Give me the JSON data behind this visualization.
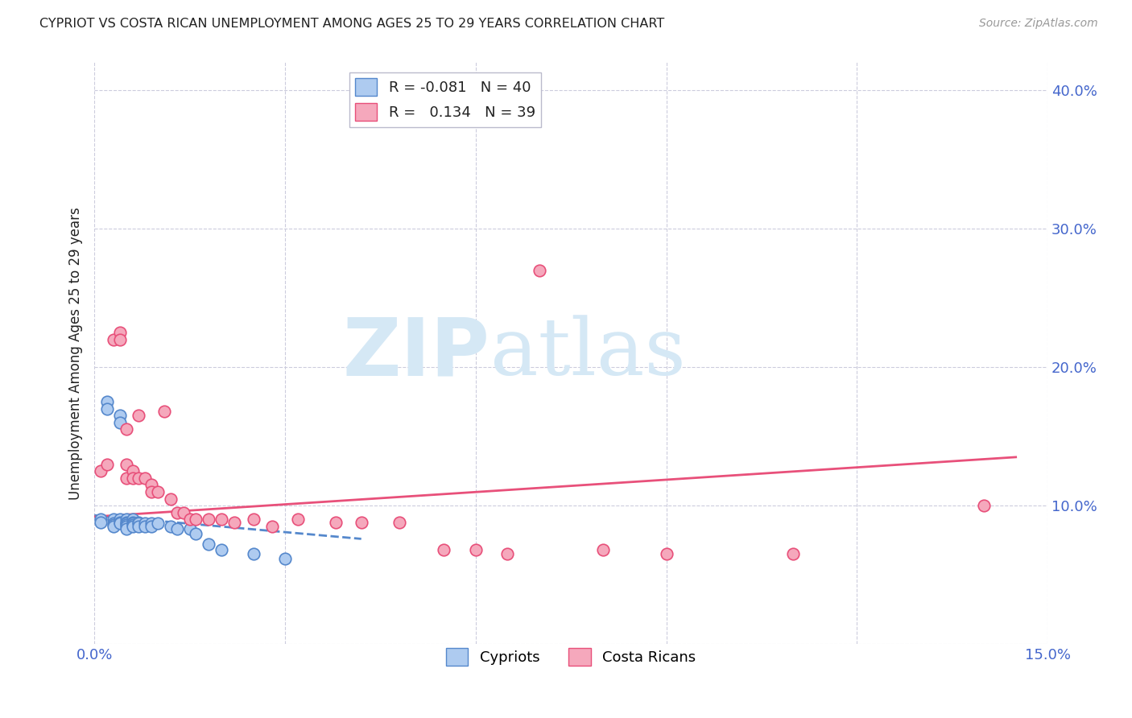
{
  "title": "CYPRIOT VS COSTA RICAN UNEMPLOYMENT AMONG AGES 25 TO 29 YEARS CORRELATION CHART",
  "source": "Source: ZipAtlas.com",
  "ylabel": "Unemployment Among Ages 25 to 29 years",
  "xlim": [
    0.0,
    0.15
  ],
  "ylim": [
    0.0,
    0.42
  ],
  "yticks": [
    0.0,
    0.1,
    0.2,
    0.3,
    0.4
  ],
  "ytick_labels": [
    "",
    "10.0%",
    "20.0%",
    "30.0%",
    "40.0%"
  ],
  "xticks": [
    0.0,
    0.03,
    0.06,
    0.09,
    0.12,
    0.15
  ],
  "xtick_labels": [
    "0.0%",
    "",
    "",
    "",
    "",
    "15.0%"
  ],
  "legend_R_cypriot": "-0.081",
  "legend_N_cypriot": "40",
  "legend_R_costarican": "0.134",
  "legend_N_costarican": "39",
  "cypriot_color": "#aecbf0",
  "costarican_color": "#f5a8bc",
  "trend_cypriot_color": "#5588cc",
  "trend_costarican_color": "#e8507a",
  "axis_color": "#4466cc",
  "grid_color": "#ccccdd",
  "title_color": "#222222",
  "background_color": "#ffffff",
  "watermark_color": "#d5e8f5",
  "cypriot_x": [
    0.001,
    0.001,
    0.002,
    0.002,
    0.003,
    0.003,
    0.003,
    0.003,
    0.004,
    0.004,
    0.004,
    0.004,
    0.004,
    0.005,
    0.005,
    0.005,
    0.005,
    0.005,
    0.005,
    0.006,
    0.006,
    0.006,
    0.006,
    0.006,
    0.007,
    0.007,
    0.007,
    0.008,
    0.008,
    0.009,
    0.009,
    0.01,
    0.012,
    0.013,
    0.015,
    0.016,
    0.018,
    0.02,
    0.025,
    0.03
  ],
  "cypriot_y": [
    0.09,
    0.088,
    0.175,
    0.17,
    0.09,
    0.087,
    0.086,
    0.085,
    0.165,
    0.16,
    0.09,
    0.088,
    0.087,
    0.09,
    0.088,
    0.087,
    0.086,
    0.085,
    0.083,
    0.09,
    0.088,
    0.087,
    0.086,
    0.085,
    0.088,
    0.087,
    0.085,
    0.087,
    0.085,
    0.087,
    0.085,
    0.087,
    0.085,
    0.083,
    0.083,
    0.08,
    0.072,
    0.068,
    0.065,
    0.062
  ],
  "costarican_x": [
    0.001,
    0.002,
    0.003,
    0.004,
    0.004,
    0.005,
    0.005,
    0.005,
    0.006,
    0.006,
    0.007,
    0.007,
    0.008,
    0.009,
    0.009,
    0.01,
    0.011,
    0.012,
    0.013,
    0.014,
    0.015,
    0.016,
    0.018,
    0.02,
    0.022,
    0.025,
    0.028,
    0.032,
    0.038,
    0.042,
    0.048,
    0.055,
    0.06,
    0.065,
    0.07,
    0.08,
    0.09,
    0.11,
    0.14
  ],
  "costarican_y": [
    0.125,
    0.13,
    0.22,
    0.225,
    0.22,
    0.155,
    0.13,
    0.12,
    0.125,
    0.12,
    0.165,
    0.12,
    0.12,
    0.115,
    0.11,
    0.11,
    0.168,
    0.105,
    0.095,
    0.095,
    0.09,
    0.09,
    0.09,
    0.09,
    0.088,
    0.09,
    0.085,
    0.09,
    0.088,
    0.088,
    0.088,
    0.068,
    0.068,
    0.065,
    0.27,
    0.068,
    0.065,
    0.065,
    0.1
  ],
  "trend_cy_x0": 0.0,
  "trend_cy_x1": 0.042,
  "trend_cy_y0": 0.093,
  "trend_cy_y1": 0.076,
  "trend_cr_x0": 0.0,
  "trend_cr_x1": 0.145,
  "trend_cr_y0": 0.092,
  "trend_cr_y1": 0.135
}
